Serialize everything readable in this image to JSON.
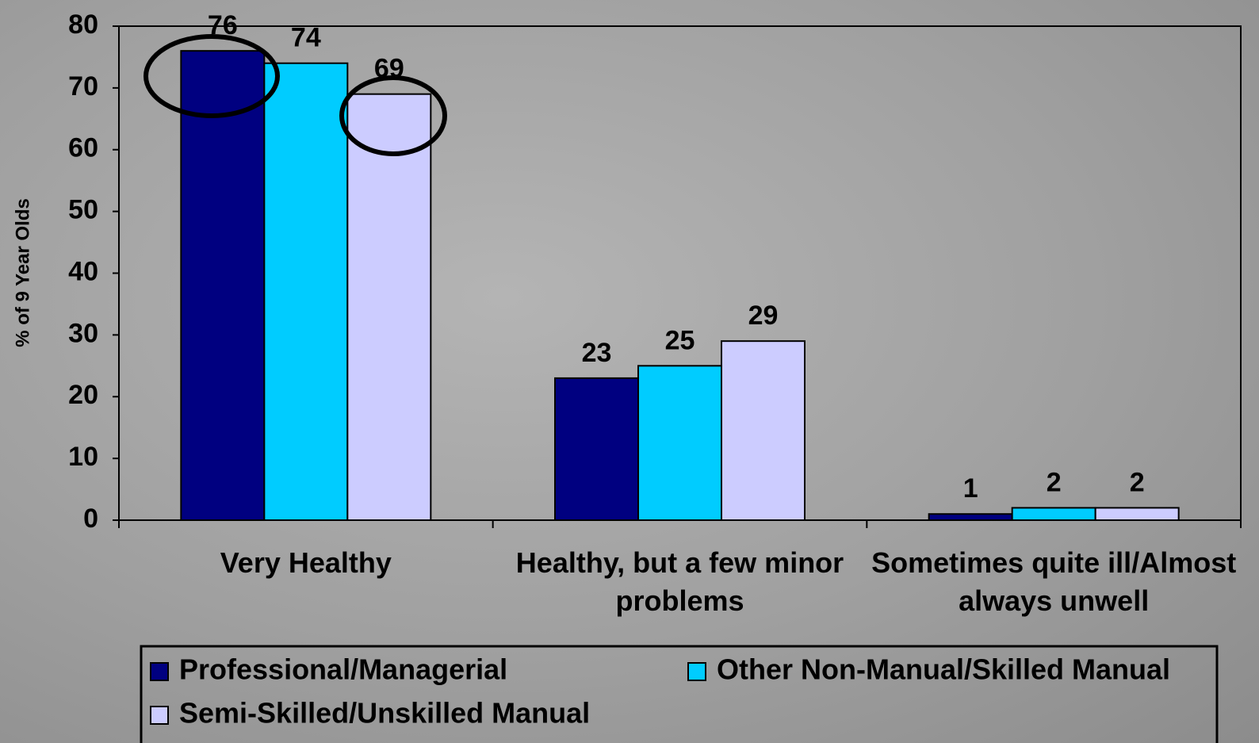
{
  "chart_data": {
    "type": "bar",
    "y_label": "% of 9 Year Olds",
    "categories": [
      "Very Healthy",
      "Healthy, but a few minor problems",
      "Sometimes quite ill/Almost always unwell"
    ],
    "series": [
      {
        "name": "Professional/Managerial",
        "color": "#000080",
        "values": [
          76,
          23,
          1
        ]
      },
      {
        "name": "Other Non-Manual/Skilled Manual",
        "color": "#00ccff",
        "values": [
          74,
          25,
          2
        ]
      },
      {
        "name": "Semi-Skilled/Unskilled Manual",
        "color": "#ccccff",
        "values": [
          69,
          29,
          2
        ]
      }
    ],
    "ylim": [
      0,
      80
    ],
    "yticks": [
      0,
      10,
      20,
      30,
      40,
      50,
      60,
      70,
      80
    ],
    "grid": false
  }
}
